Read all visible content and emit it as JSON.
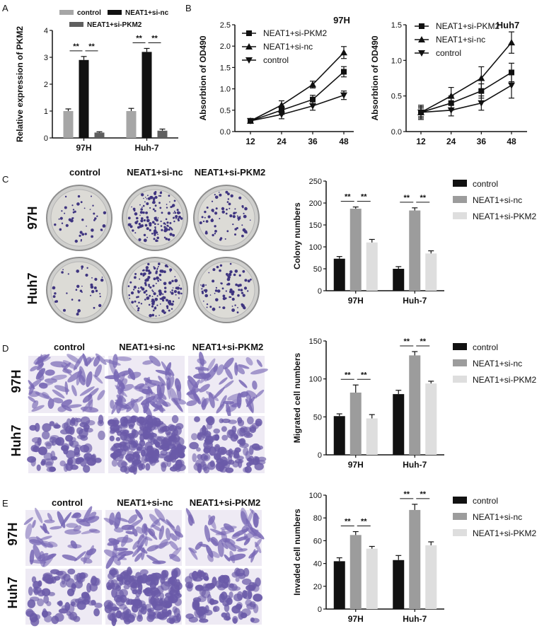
{
  "panels": {
    "A": {
      "label": "A"
    },
    "B": {
      "label": "B"
    },
    "C": {
      "label": "C",
      "headers": [
        "control",
        "NEAT1+si-nc",
        "NEAT1+si-PKM2"
      ],
      "rows": [
        "97H",
        "Huh7"
      ]
    },
    "D": {
      "label": "D",
      "headers": [
        "control",
        "NEAT1+si-nc",
        "NEAT1+si-PKM2"
      ],
      "rows": [
        "97H",
        "Huh7"
      ]
    },
    "E": {
      "label": "E",
      "headers": [
        "control",
        "NEAT1+si-nc",
        "NEAT1+si-PKM2"
      ],
      "rows": [
        "97H",
        "Huh7"
      ]
    }
  },
  "colors": {
    "control_gray": "#a6a6a6",
    "black": "#111111",
    "dark_gray": "#5f5f5f",
    "mid_gray": "#9c9c9c",
    "light_gray": "#dedede",
    "stain": "#6a5aa8"
  },
  "chart_data": [
    {
      "id": "A",
      "type": "bar",
      "title": "",
      "ylabel": "Relative expression of PKM2",
      "xlabel": "",
      "categories": [
        "97H",
        "Huh-7"
      ],
      "ylim": [
        0,
        4
      ],
      "yticks": [
        "0",
        "1",
        "2",
        "3",
        "4"
      ],
      "series": [
        {
          "name": "control",
          "values": [
            1.0,
            1.0
          ],
          "err": [
            0.08,
            0.1
          ],
          "color": "#a6a6a6"
        },
        {
          "name": "NEAT1+si-nc",
          "values": [
            2.9,
            3.2
          ],
          "err": [
            0.13,
            0.13
          ],
          "color": "#111111"
        },
        {
          "name": "NEAT1+si-PKM2",
          "values": [
            0.2,
            0.27
          ],
          "err": [
            0.03,
            0.06
          ],
          "color": "#5f5f5f"
        }
      ],
      "significance": [
        "**",
        "**"
      ],
      "legend": "top"
    },
    {
      "id": "B1",
      "type": "line",
      "title": "97H",
      "ylabel": "Absorbtion of OD490",
      "x": [
        "12",
        "24",
        "36",
        "48"
      ],
      "ylim": [
        0,
        2.5
      ],
      "yticks": [
        "0.0",
        "0.5",
        "1.0",
        "1.5",
        "2.0",
        "2.5"
      ],
      "series": [
        {
          "name": "NEAT1+si-PKM2",
          "marker": "square",
          "values": [
            0.25,
            0.5,
            0.75,
            1.4
          ],
          "err": [
            0.03,
            0.1,
            0.1,
            0.12
          ]
        },
        {
          "name": "NEAT1+si-nc",
          "marker": "triangle",
          "values": [
            0.25,
            0.62,
            1.1,
            1.85
          ],
          "err": [
            0.03,
            0.1,
            0.08,
            0.14
          ]
        },
        {
          "name": "control",
          "marker": "triangle-down",
          "values": [
            0.25,
            0.4,
            0.6,
            0.85
          ],
          "err": [
            0.03,
            0.1,
            0.1,
            0.1
          ]
        }
      ],
      "legend": "top-left"
    },
    {
      "id": "B2",
      "type": "line",
      "title": "Huh7",
      "ylabel": "Absorbtion of OD490",
      "x": [
        "12",
        "24",
        "36",
        "48"
      ],
      "ylim": [
        0,
        1.5
      ],
      "yticks": [
        "0.0",
        "0.5",
        "1.0",
        "1.5"
      ],
      "series": [
        {
          "name": "NEAT1+si-PKM2",
          "marker": "square",
          "values": [
            0.27,
            0.4,
            0.57,
            0.83
          ],
          "err": [
            0.1,
            0.1,
            0.1,
            0.13
          ]
        },
        {
          "name": "NEAT1+si-nc",
          "marker": "triangle",
          "values": [
            0.27,
            0.5,
            0.75,
            1.25
          ],
          "err": [
            0.08,
            0.12,
            0.16,
            0.15
          ]
        },
        {
          "name": "control",
          "marker": "triangle-down",
          "values": [
            0.27,
            0.3,
            0.4,
            0.65
          ],
          "err": [
            0.06,
            0.08,
            0.1,
            0.18
          ]
        }
      ],
      "legend": "top-left"
    },
    {
      "id": "C",
      "type": "bar",
      "ylabel": "Colony numbers",
      "categories": [
        "97H",
        "Huh-7"
      ],
      "ylim": [
        0,
        250
      ],
      "yticks": [
        "0",
        "50",
        "100",
        "150",
        "200",
        "250"
      ],
      "series": [
        {
          "name": "control",
          "values": [
            73,
            50
          ],
          "err": [
            5,
            5
          ],
          "color": "#111111"
        },
        {
          "name": "NEAT1+si-nc",
          "values": [
            187,
            183
          ],
          "err": [
            4,
            6
          ],
          "color": "#9c9c9c"
        },
        {
          "name": "NEAT1+si-PKM2",
          "values": [
            110,
            85
          ],
          "err": [
            7,
            6
          ],
          "color": "#dedede"
        }
      ],
      "significance": [
        "**",
        "**"
      ],
      "legend": "right"
    },
    {
      "id": "D",
      "type": "bar",
      "ylabel": "Migrated cell numbers",
      "categories": [
        "97H",
        "Huh-7"
      ],
      "ylim": [
        0,
        150
      ],
      "yticks": [
        "0",
        "50",
        "100",
        "150"
      ],
      "series": [
        {
          "name": "control",
          "values": [
            51,
            80
          ],
          "err": [
            3,
            5
          ],
          "color": "#111111"
        },
        {
          "name": "NEAT1+si-nc",
          "values": [
            82,
            131
          ],
          "err": [
            10,
            5
          ],
          "color": "#9c9c9c"
        },
        {
          "name": "NEAT1+si-PKM2",
          "values": [
            48,
            94
          ],
          "err": [
            5,
            3
          ],
          "color": "#dedede"
        }
      ],
      "significance": [
        "**",
        "**"
      ],
      "legend": "right"
    },
    {
      "id": "E",
      "type": "bar",
      "ylabel": "Invaded cell numbers",
      "categories": [
        "97H",
        "Huh-7"
      ],
      "ylim": [
        0,
        100
      ],
      "yticks": [
        "0",
        "20",
        "40",
        "60",
        "80",
        "100"
      ],
      "series": [
        {
          "name": "control",
          "values": [
            42,
            43
          ],
          "err": [
            3,
            4
          ],
          "color": "#111111"
        },
        {
          "name": "NEAT1+si-nc",
          "values": [
            65,
            87
          ],
          "err": [
            3,
            5
          ],
          "color": "#9c9c9c"
        },
        {
          "name": "NEAT1+si-PKM2",
          "values": [
            53,
            56
          ],
          "err": [
            2,
            3
          ],
          "color": "#dedede"
        }
      ],
      "significance": [
        "**",
        "**"
      ],
      "legend": "right"
    }
  ]
}
